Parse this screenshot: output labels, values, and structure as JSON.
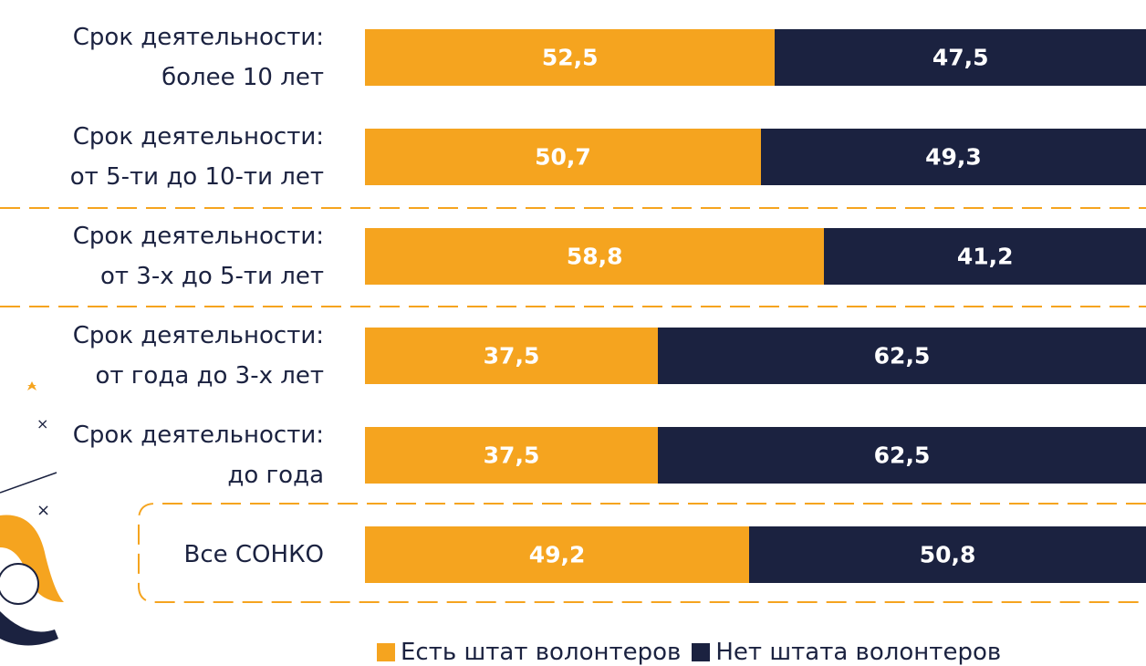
{
  "chart_data": {
    "type": "stacked-bar-horizontal",
    "categories": [
      "Срок деятельности:\nболее 10 лет",
      "Срок деятельности:\nот 5-ти до 10-ти лет",
      "Срок деятельности:\nот 3-х до 5-ти лет",
      "Срок деятельности:\nот года до 3-х лет",
      "Срок деятельности:\nдо года",
      "Все СОНКО"
    ],
    "xlim": [
      0,
      100
    ],
    "series": [
      {
        "name": "Есть штат волонтеров",
        "color": "#f5a41f",
        "values": [
          52.5,
          50.7,
          58.8,
          37.5,
          37.5,
          49.2
        ],
        "value_labels": [
          "52,5",
          "50,7",
          "58,8",
          "37,5",
          "37,5",
          "49,2"
        ]
      },
      {
        "name": "Нет штата волонтеров",
        "color": "#1b2240",
        "values": [
          47.5,
          49.3,
          41.2,
          62.5,
          62.5,
          50.8
        ],
        "value_labels": [
          "47,5",
          "49,3",
          "41,2",
          "62,5",
          "62,5",
          "50,8"
        ]
      }
    ]
  }
}
